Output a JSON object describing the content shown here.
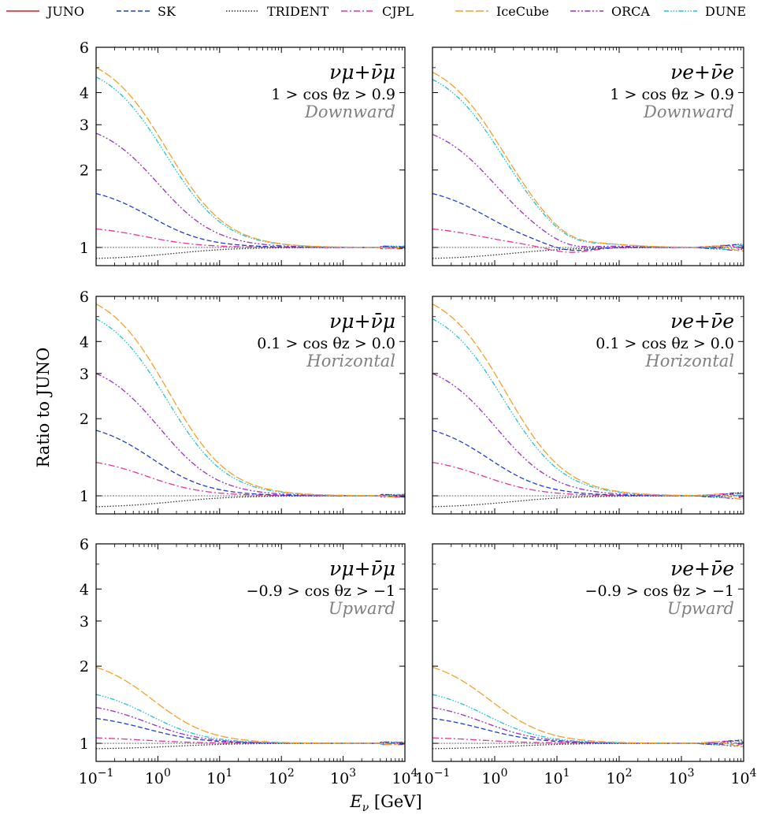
{
  "chart_data": {
    "type": "line",
    "ylabel": "Ratio to JUNO",
    "xlabel": "E_ν [GeV]",
    "xscale": "log",
    "yscale": "log",
    "xlim": [
      0.1,
      10000
    ],
    "ylim": [
      0.85,
      6
    ],
    "yticks": [
      1,
      2,
      3,
      4,
      6
    ],
    "yticklabels": [
      "1",
      "2",
      "3",
      "4",
      "6"
    ],
    "xticks": [
      0.1,
      1,
      10,
      100,
      1000,
      10000
    ],
    "xticklabels": [
      [
        "10",
        "−1"
      ],
      [
        "10",
        "0"
      ],
      [
        "10",
        "1"
      ],
      [
        "10",
        "2"
      ],
      [
        "10",
        "3"
      ],
      [
        "10",
        "4"
      ]
    ],
    "legend": {
      "placement": "top",
      "entries": [
        {
          "name": "JUNO",
          "color": "#e41a1c",
          "dash": "solid"
        },
        {
          "name": "SK",
          "color": "#1f3ecf",
          "dash": "dashed"
        },
        {
          "name": "TRIDENT",
          "color": "#333333",
          "dash": "dotted"
        },
        {
          "name": "CJPL",
          "color": "#e8359b",
          "dash": "dashdot"
        },
        {
          "name": "IceCube",
          "color": "#f5a02a",
          "dash": "longdash"
        },
        {
          "name": "ORCA",
          "color": "#9b2fc6",
          "dash": "dashdotdot"
        },
        {
          "name": "DUNE",
          "color": "#1fc3d3",
          "dash": "dashdotdotdot"
        }
      ]
    },
    "panels": [
      {
        "flavor": "ν_μ+ν̄_μ",
        "range": "1 > cos θz > 0.9",
        "direction": "Downward",
        "series": {
          "SK": 1.62,
          "TRIDENT": 0.9,
          "CJPL": 1.18,
          "IceCube": 5.0,
          "ORCA": 2.78,
          "DUNE": 4.6
        }
      },
      {
        "flavor": "ν_e+ν̄_e",
        "range": "1 > cos θz > 0.9",
        "direction": "Downward",
        "series": {
          "SK": 1.62,
          "TRIDENT": 0.9,
          "CJPL": 1.18,
          "IceCube": 4.8,
          "ORCA": 2.75,
          "DUNE": 4.5
        }
      },
      {
        "flavor": "ν_μ+ν̄_μ",
        "range": "0.1 > cos θz > 0.0",
        "direction": "Horizontal",
        "series": {
          "SK": 1.8,
          "TRIDENT": 0.9,
          "CJPL": 1.35,
          "IceCube": 5.6,
          "ORCA": 3.0,
          "DUNE": 4.9
        }
      },
      {
        "flavor": "ν_e+ν̄_e",
        "range": "0.1 > cos θz > 0.0",
        "direction": "Horizontal",
        "series": {
          "SK": 1.8,
          "TRIDENT": 0.9,
          "CJPL": 1.35,
          "IceCube": 5.6,
          "ORCA": 3.0,
          "DUNE": 4.9
        }
      },
      {
        "flavor": "ν_μ+ν̄_μ",
        "range": "−0.9 > cos θz > −1",
        "direction": "Upward",
        "series": {
          "SK": 1.25,
          "TRIDENT": 0.95,
          "CJPL": 1.05,
          "IceCube": 1.98,
          "ORCA": 1.38,
          "DUNE": 1.55
        }
      },
      {
        "flavor": "ν_e+ν̄_e",
        "range": "−0.9 > cos θz > −1",
        "direction": "Upward",
        "series": {
          "SK": 1.25,
          "TRIDENT": 0.95,
          "CJPL": 1.05,
          "IceCube": 1.98,
          "ORCA": 1.38,
          "DUNE": 1.55
        }
      }
    ]
  }
}
